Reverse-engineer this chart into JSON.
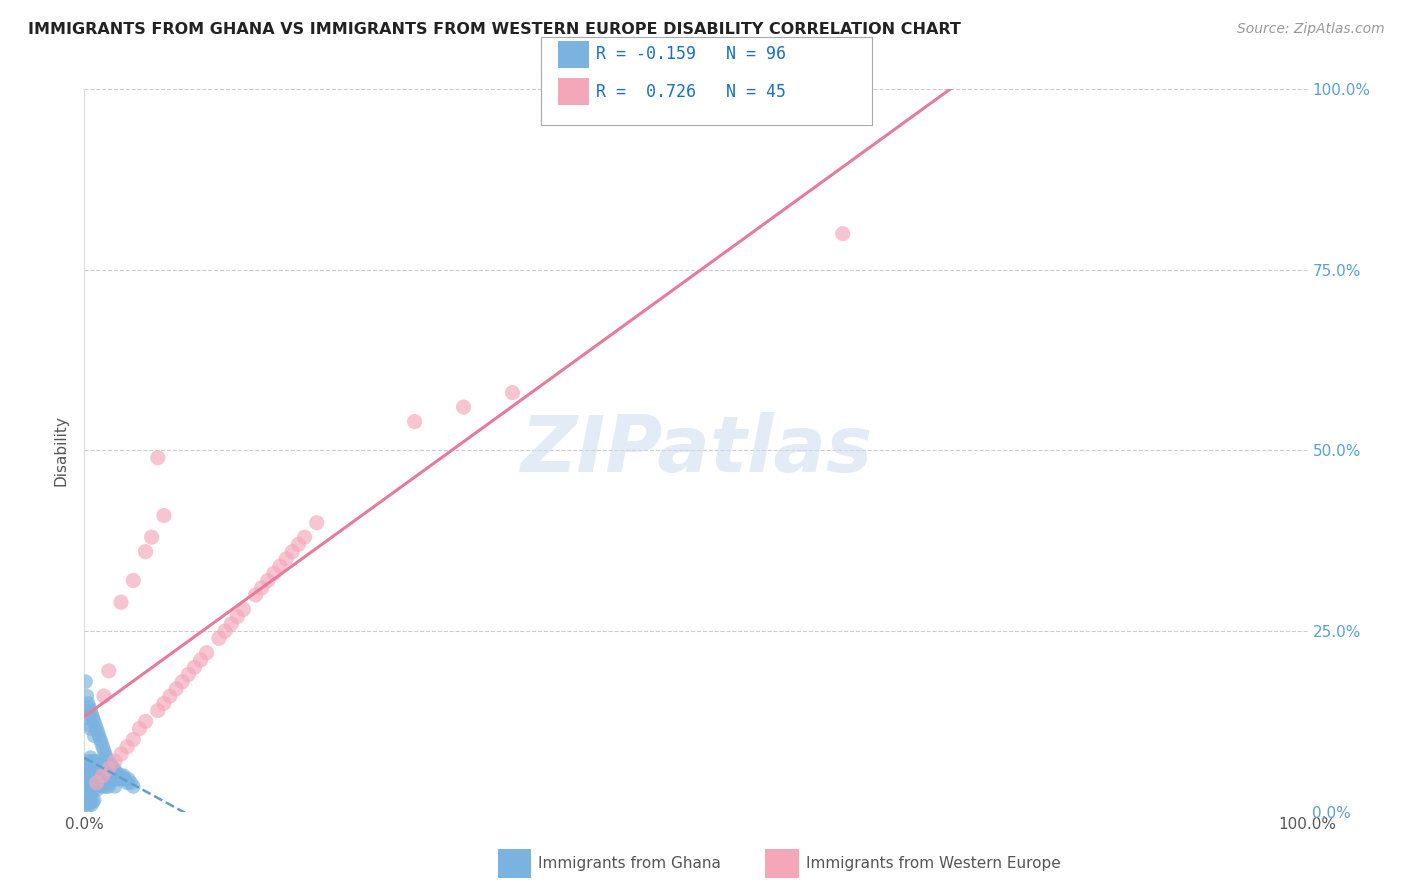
{
  "title": "IMMIGRANTS FROM GHANA VS IMMIGRANTS FROM WESTERN EUROPE DISABILITY CORRELATION CHART",
  "source": "Source: ZipAtlas.com",
  "ylabel": "Disability",
  "xlim": [
    0,
    1.0
  ],
  "ylim": [
    0,
    1.0
  ],
  "watermark": "ZIPatlas",
  "legend1_label": "Immigrants from Ghana",
  "legend2_label": "Immigrants from Western Europe",
  "R_ghana": -0.159,
  "N_ghana": 96,
  "R_western": 0.726,
  "N_western": 45,
  "color_ghana": "#7ab3e0",
  "color_western": "#f4a7b9",
  "color_ghana_line": "#5b9fd4",
  "color_western_line": "#e87a9a",
  "background_color": "#ffffff",
  "ghana_x": [
    0.001,
    0.002,
    0.002,
    0.003,
    0.003,
    0.003,
    0.004,
    0.004,
    0.004,
    0.005,
    0.005,
    0.005,
    0.005,
    0.006,
    0.006,
    0.006,
    0.007,
    0.007,
    0.007,
    0.008,
    0.008,
    0.008,
    0.009,
    0.009,
    0.01,
    0.01,
    0.01,
    0.011,
    0.011,
    0.012,
    0.012,
    0.013,
    0.013,
    0.014,
    0.014,
    0.015,
    0.015,
    0.016,
    0.016,
    0.017,
    0.018,
    0.018,
    0.019,
    0.02,
    0.02,
    0.021,
    0.022,
    0.023,
    0.024,
    0.025,
    0.025,
    0.026,
    0.027,
    0.028,
    0.029,
    0.03,
    0.031,
    0.032,
    0.033,
    0.035,
    0.036,
    0.038,
    0.04,
    0.001,
    0.002,
    0.003,
    0.003,
    0.004,
    0.004,
    0.005,
    0.005,
    0.006,
    0.007,
    0.008,
    0.008,
    0.009,
    0.01,
    0.011,
    0.012,
    0.013,
    0.014,
    0.015,
    0.016,
    0.017,
    0.018,
    0.02,
    0.022,
    0.024,
    0.026,
    0.001,
    0.002,
    0.003,
    0.004,
    0.005,
    0.006,
    0.007,
    0.008
  ],
  "ghana_y": [
    0.055,
    0.06,
    0.04,
    0.07,
    0.055,
    0.035,
    0.065,
    0.05,
    0.03,
    0.075,
    0.06,
    0.045,
    0.025,
    0.07,
    0.055,
    0.035,
    0.065,
    0.05,
    0.03,
    0.07,
    0.055,
    0.035,
    0.06,
    0.045,
    0.07,
    0.055,
    0.03,
    0.06,
    0.04,
    0.065,
    0.045,
    0.06,
    0.04,
    0.055,
    0.035,
    0.06,
    0.04,
    0.055,
    0.035,
    0.05,
    0.055,
    0.035,
    0.05,
    0.055,
    0.035,
    0.05,
    0.045,
    0.05,
    0.045,
    0.055,
    0.035,
    0.05,
    0.045,
    0.05,
    0.045,
    0.05,
    0.045,
    0.05,
    0.045,
    0.04,
    0.045,
    0.04,
    0.035,
    0.18,
    0.16,
    0.15,
    0.13,
    0.145,
    0.12,
    0.14,
    0.115,
    0.135,
    0.13,
    0.125,
    0.105,
    0.12,
    0.115,
    0.11,
    0.105,
    0.1,
    0.095,
    0.09,
    0.085,
    0.08,
    0.075,
    0.07,
    0.065,
    0.06,
    0.055,
    0.01,
    0.015,
    0.008,
    0.012,
    0.018,
    0.01,
    0.014,
    0.016
  ],
  "western_x": [
    0.01,
    0.015,
    0.02,
    0.025,
    0.03,
    0.035,
    0.04,
    0.045,
    0.05,
    0.06,
    0.065,
    0.07,
    0.075,
    0.08,
    0.085,
    0.09,
    0.095,
    0.1,
    0.11,
    0.115,
    0.12,
    0.125,
    0.13,
    0.14,
    0.145,
    0.15,
    0.155,
    0.16,
    0.165,
    0.17,
    0.175,
    0.18,
    0.19,
    0.06,
    0.62,
    0.03,
    0.27,
    0.04,
    0.05,
    0.055,
    0.065,
    0.31,
    0.35,
    0.016,
    0.02
  ],
  "western_y": [
    0.04,
    0.05,
    0.06,
    0.07,
    0.08,
    0.09,
    0.1,
    0.115,
    0.125,
    0.14,
    0.15,
    0.16,
    0.17,
    0.18,
    0.19,
    0.2,
    0.21,
    0.22,
    0.24,
    0.25,
    0.26,
    0.27,
    0.28,
    0.3,
    0.31,
    0.32,
    0.33,
    0.34,
    0.35,
    0.36,
    0.37,
    0.38,
    0.4,
    0.49,
    0.8,
    0.29,
    0.54,
    0.32,
    0.36,
    0.38,
    0.41,
    0.56,
    0.58,
    0.16,
    0.195
  ]
}
